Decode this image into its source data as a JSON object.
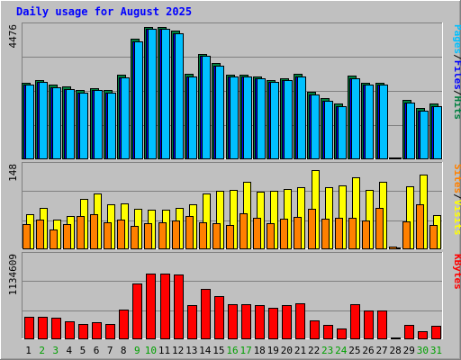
{
  "chart_data": [
    {
      "type": "bar",
      "title": "Daily usage for August 2025",
      "categories": [
        "1",
        "2",
        "3",
        "4",
        "5",
        "6",
        "7",
        "8",
        "9",
        "10",
        "11",
        "12",
        "13",
        "14",
        "15",
        "16",
        "17",
        "18",
        "19",
        "20",
        "21",
        "22",
        "23",
        "24",
        "25",
        "26",
        "27",
        "28",
        "29",
        "30",
        "31"
      ],
      "weekend_days": [
        "2",
        "3",
        "9",
        "10",
        "16",
        "17",
        "23",
        "24",
        "30",
        "31"
      ],
      "panels": [
        {
          "name": "pages-files-hits",
          "ymax_label": "4476",
          "ymax": 4476,
          "legend": [
            {
              "text": "Pages",
              "color": "#00c0ff"
            },
            {
              "text": "/",
              "color": "#000000"
            },
            {
              "text": "Files",
              "color": "#0000ff"
            },
            {
              "text": "/",
              "color": "#000000"
            },
            {
              "text": "Hits",
              "color": "#008040"
            }
          ],
          "series": [
            {
              "name": "Hits",
              "color": "#008040",
              "values": [
                2580,
                2680,
                2510,
                2450,
                2330,
                2400,
                2330,
                2850,
                4080,
                4476,
                4476,
                4350,
                2870,
                3560,
                3250,
                2860,
                2860,
                2800,
                2680,
                2740,
                2880,
                2270,
                2050,
                1860,
                2820,
                2580,
                2580,
                0,
                1980,
                1720,
                1860
              ]
            },
            {
              "name": "Files",
              "color": "#0000ff",
              "values": [
                2500,
                2600,
                2430,
                2370,
                2250,
                2320,
                2250,
                2770,
                4000,
                4430,
                4420,
                4270,
                2790,
                3480,
                3170,
                2780,
                2780,
                2720,
                2600,
                2660,
                2800,
                2190,
                1970,
                1780,
                2740,
                2500,
                2500,
                0,
                1900,
                1640,
                1780
              ]
            },
            {
              "name": "Pages",
              "color": "#00c0ff",
              "values": [
                2500,
                2600,
                2430,
                2370,
                2250,
                2320,
                2250,
                2770,
                4000,
                4430,
                4420,
                4270,
                2790,
                3480,
                3170,
                2780,
                2780,
                2720,
                2600,
                2660,
                2800,
                2190,
                1970,
                1780,
                2740,
                2500,
                2500,
                0,
                1900,
                1640,
                1780
              ]
            }
          ]
        },
        {
          "name": "visits-sites",
          "ymax_label": "148",
          "ymax": 148,
          "legend": [
            {
              "text": "Sites",
              "color": "#ff8000"
            },
            {
              "text": "/",
              "color": "#000000"
            },
            {
              "text": "Visits",
              "color": "#ffff00"
            }
          ],
          "series": [
            {
              "name": "Visits",
              "color": "#ffff00",
              "values": [
                61,
                73,
                52,
                59,
                90,
                100,
                79,
                81,
                71,
                70,
                70,
                73,
                80,
                100,
                104,
                105,
                120,
                102,
                104,
                108,
                110,
                142,
                110,
                114,
                128,
                105,
                120,
                0,
                112,
                133,
                60
              ]
            },
            {
              "name": "Sites",
              "color": "#ff8000",
              "values": [
                44,
                52,
                34,
                44,
                59,
                62,
                47,
                52,
                41,
                45,
                47,
                51,
                59,
                47,
                46,
                43,
                63,
                56,
                45,
                54,
                57,
                72,
                53,
                56,
                55,
                50,
                73,
                3,
                49,
                80,
                42
              ]
            }
          ]
        },
        {
          "name": "kbytes",
          "ymax_label": "1134609",
          "ymax": 1134609,
          "legend": [
            {
              "text": "KBytes",
              "color": "#ff0000"
            }
          ],
          "series": [
            {
              "name": "KBytes",
              "color": "#ff0000",
              "values": [
                300000,
                300000,
                290000,
                240000,
                200000,
                225000,
                205000,
                405000,
                762000,
                893000,
                893000,
                885000,
                460000,
                682000,
                580000,
                470000,
                470000,
                460000,
                430000,
                460000,
                490000,
                250000,
                185000,
                140000,
                480000,
                385000,
                390000,
                0,
                190000,
                105000,
                170000
              ]
            }
          ]
        }
      ]
    }
  ]
}
